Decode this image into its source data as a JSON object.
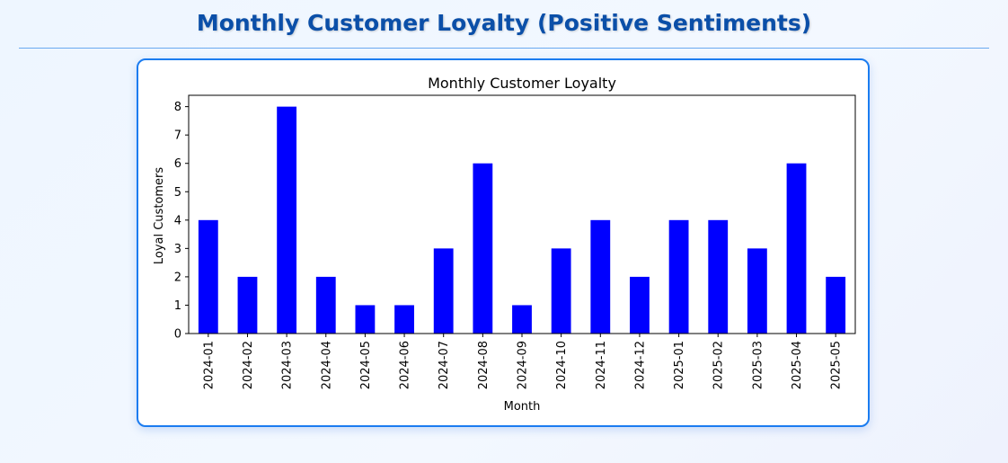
{
  "page": {
    "title": "Monthly Customer Loyalty (Positive Sentiments)"
  },
  "colors": {
    "bar": "#0000ff",
    "title": "#0b4fa8",
    "card_border": "#1b7cf0",
    "rule": "#6aa9f0"
  },
  "chart_data": {
    "type": "bar",
    "title": "Monthly Customer Loyalty",
    "xlabel": "Month",
    "ylabel": "Loyal Customers",
    "categories": [
      "2024-01",
      "2024-02",
      "2024-03",
      "2024-04",
      "2024-05",
      "2024-06",
      "2024-07",
      "2024-08",
      "2024-09",
      "2024-10",
      "2024-11",
      "2024-12",
      "2025-01",
      "2025-02",
      "2025-03",
      "2025-04",
      "2025-05"
    ],
    "values": [
      4,
      2,
      8,
      2,
      1,
      1,
      3,
      6,
      1,
      3,
      4,
      2,
      4,
      4,
      3,
      6,
      2
    ],
    "ylim": [
      0,
      8.4
    ],
    "yticks": [
      0,
      1,
      2,
      3,
      4,
      5,
      6,
      7,
      8
    ],
    "grid": false,
    "legend": "none"
  }
}
